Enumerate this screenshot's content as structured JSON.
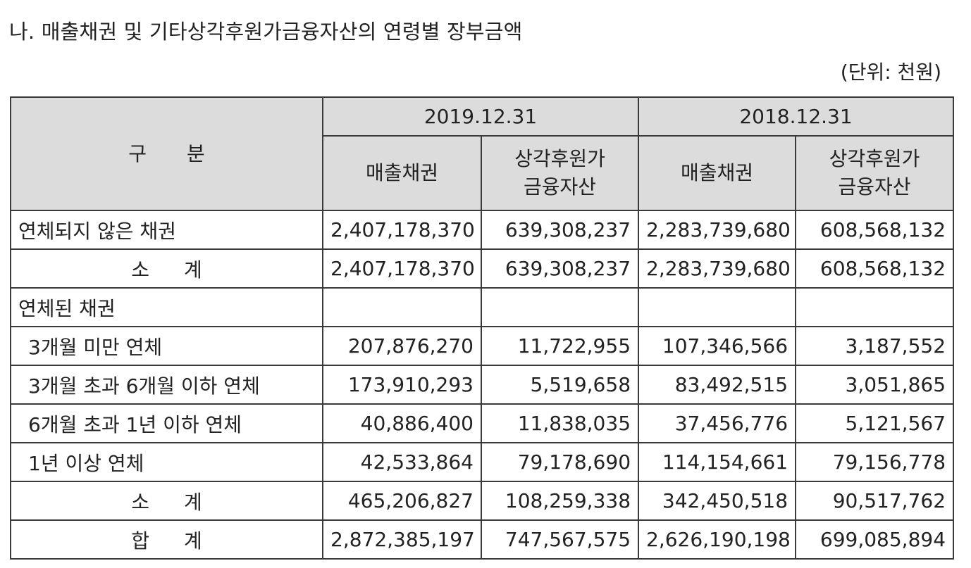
{
  "title": "나. 매출채권 및 기타상각후원가금융자산의 연령별 장부금액",
  "unit": "(단위: 천원)",
  "table": {
    "header": {
      "category": "구 분",
      "periods": [
        "2019.12.31",
        "2018.12.31"
      ],
      "sub": [
        "매출채권",
        "상각후원가\n금융자산",
        "매출채권",
        "상각후원가\n금융자산"
      ]
    },
    "rows": [
      {
        "label": "연체되지 않은 채권",
        "values": [
          "2,407,178,370",
          "639,308,237",
          "2,283,739,680",
          "608,568,132"
        ]
      },
      {
        "label": "소 계",
        "values": [
          "2,407,178,370",
          "639,308,237",
          "2,283,739,680",
          "608,568,132"
        ]
      },
      {
        "label": "연체된 채권",
        "values": [
          "",
          "",
          "",
          ""
        ]
      },
      {
        "label": "3개월 미만 연체",
        "values": [
          "207,876,270",
          "11,722,955",
          "107,346,566",
          "3,187,552"
        ]
      },
      {
        "label": "3개월 초과 6개월 이하 연체",
        "values": [
          "173,910,293",
          "5,519,658",
          "83,492,515",
          "3,051,865"
        ]
      },
      {
        "label": "6개월 초과 1년 이하 연체",
        "values": [
          "40,886,400",
          "11,838,035",
          "37,456,776",
          "5,121,567"
        ]
      },
      {
        "label": "1년 이상 연체",
        "values": [
          "42,533,864",
          "79,178,690",
          "114,154,661",
          "79,156,778"
        ]
      },
      {
        "label": "소 계",
        "values": [
          "465,206,827",
          "108,259,338",
          "342,450,518",
          "90,517,762"
        ]
      },
      {
        "label": "합 계",
        "values": [
          "2,872,385,197",
          "747,567,575",
          "2,626,190,198",
          "699,085,894"
        ]
      }
    ]
  },
  "colors": {
    "header_bg": "#dcdcdc",
    "border": "#3a3a3a",
    "text": "#222222"
  }
}
